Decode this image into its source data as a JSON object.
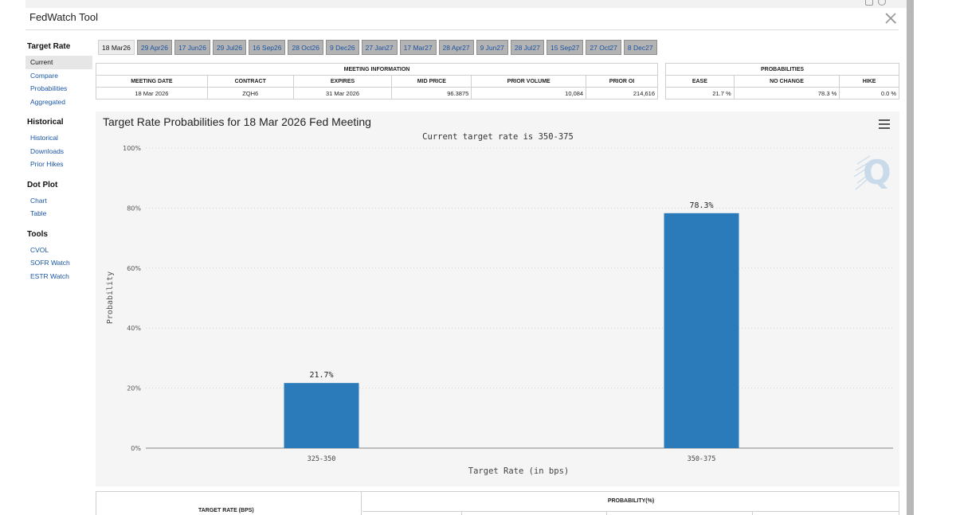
{
  "app": {
    "title": "FedWatch Tool"
  },
  "sidebar": {
    "sections": [
      {
        "heading": "Target Rate",
        "items": [
          "Current",
          "Compare",
          "Probabilities",
          "Aggregated"
        ]
      },
      {
        "heading": "Historical",
        "items": [
          "Historical",
          "Downloads",
          "Prior Hikes"
        ]
      },
      {
        "heading": "Dot Plot",
        "items": [
          "Chart",
          "Table"
        ]
      },
      {
        "heading": "Tools",
        "items": [
          "CVOL",
          "SOFR Watch",
          "ESTR Watch"
        ]
      }
    ],
    "active": "Current"
  },
  "meeting_tabs": [
    "18 Mar26",
    "29 Apr26",
    "17 Jun26",
    "29 Jul26",
    "16 Sep26",
    "28 Oct26",
    "9 Dec26",
    "27 Jan27",
    "17 Mar27",
    "28 Apr27",
    "9 Jun27",
    "28 Jul27",
    "15 Sep27",
    "27 Oct27",
    "8 Dec27"
  ],
  "active_tab": "18 Mar26",
  "meeting_info": {
    "caption": "MEETING INFORMATION",
    "headers": [
      "MEETING DATE",
      "CONTRACT",
      "EXPIRES",
      "MID PRICE",
      "PRIOR VOLUME",
      "PRIOR OI"
    ],
    "row": [
      "18 Mar 2026",
      "ZQH6",
      "31 Mar 2026",
      "96.3875",
      "10,084",
      "214,616"
    ]
  },
  "probabilities": {
    "caption": "PROBABILITIES",
    "headers": [
      "EASE",
      "NO CHANGE",
      "HIKE"
    ],
    "row": [
      "21.7 %",
      "78.3 %",
      "0.0 %"
    ]
  },
  "chart": {
    "title": "Target Rate Probabilities for 18 Mar 2026 Fed Meeting",
    "subtitle": "Current target rate is 350-375",
    "logo_letter": "Q"
  },
  "chart_data": {
    "type": "bar",
    "categories": [
      "325-350",
      "350-375"
    ],
    "values": [
      21.7,
      78.3
    ],
    "value_labels": [
      "21.7%",
      "78.3%"
    ],
    "xlabel": "Target Rate (in bps)",
    "ylabel": "Probability",
    "ylim": [
      0,
      100
    ],
    "yticks": [
      "0%",
      "20%",
      "40%",
      "60%",
      "80%",
      "100%"
    ],
    "bar_color": "#2b7bba",
    "grid": true
  },
  "bottom_table": {
    "left_header": "TARGET RATE (BPS)",
    "right_header": "PROBABILITY(%)"
  }
}
